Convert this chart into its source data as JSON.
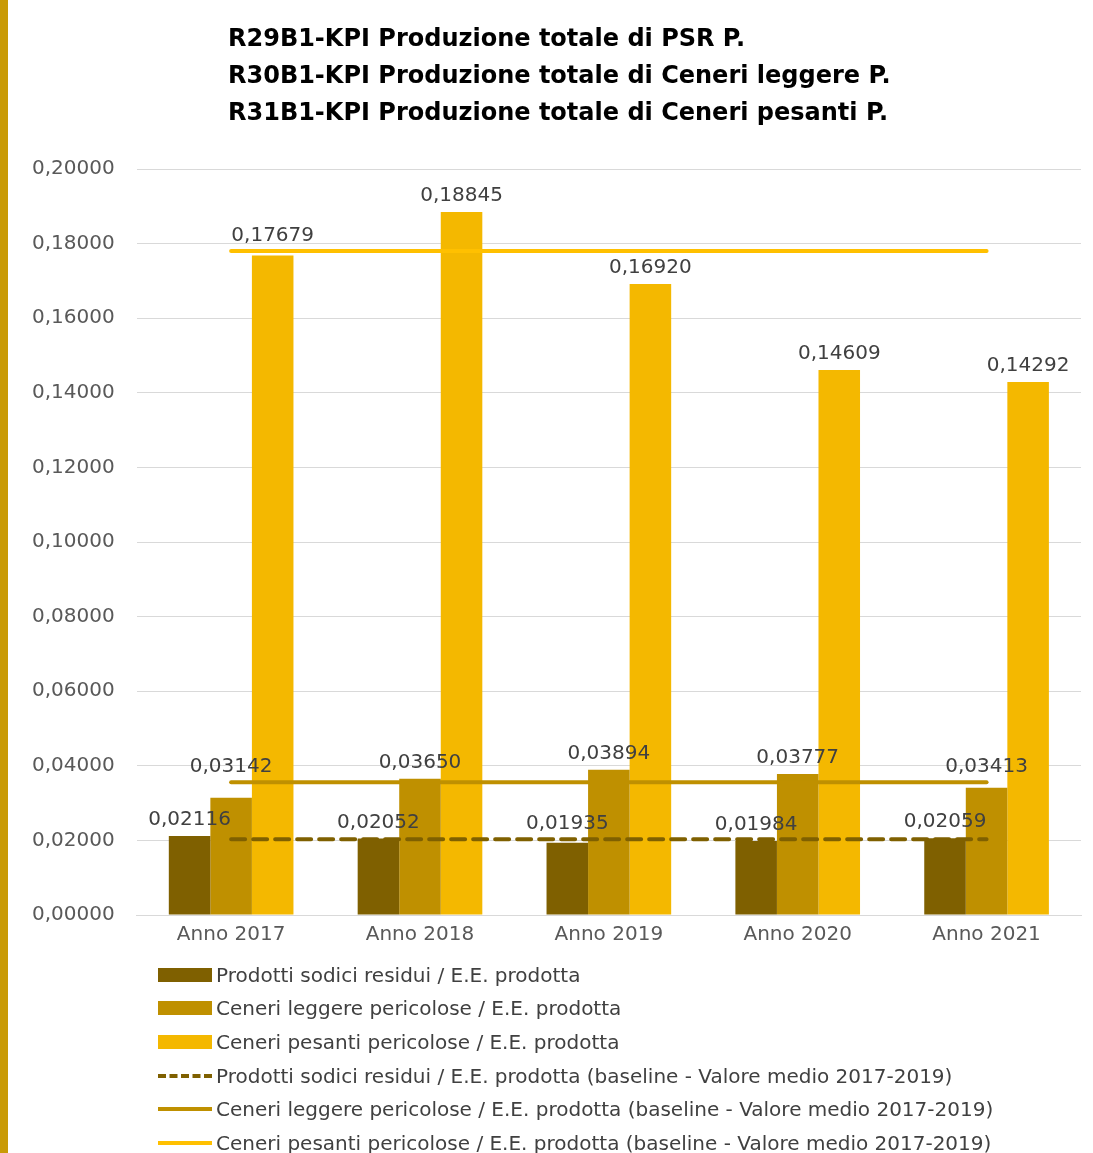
{
  "chart_data": {
    "type": "bar",
    "title": "R29B1-KPI Produzione totale di PSR P.\nR30B1-KPI Produzione totale di Ceneri leggere P.\nR31B1-KPI Produzione totale di Ceneri pesanti P.",
    "categories": [
      "Anno 2017",
      "Anno 2018",
      "Anno 2019",
      "Anno 2020",
      "Anno 2021"
    ],
    "series": [
      {
        "name": "Prodotti sodici residui / E.E. prodotta",
        "color": "#7f6000",
        "values": [
          0.02116,
          0.02052,
          0.01935,
          0.01984,
          0.02059
        ],
        "value_labels": [
          "0,02116",
          "0,02052",
          "0,01935",
          "0,01984",
          "0,02059"
        ]
      },
      {
        "name": "Ceneri leggere pericolose / E.E. prodotta",
        "color": "#bf9000",
        "values": [
          0.03142,
          0.0365,
          0.03894,
          0.03777,
          0.03413
        ],
        "value_labels": [
          "0,03142",
          "0,03650",
          "0,03894",
          "0,03777",
          "0,03413"
        ]
      },
      {
        "name": "Ceneri pesanti pericolose / E.E. prodotta",
        "color": "#f4b800",
        "values": [
          0.17679,
          0.18845,
          0.1692,
          0.14609,
          0.14292
        ],
        "value_labels": [
          "0,17679",
          "0,18845",
          "0,16920",
          "0,14609",
          "0,14292"
        ]
      },
      {
        "name": "Prodotti sodici residui / E.E. prodotta (baseline - Valore medio 2017-2019)",
        "type": "line",
        "color": "#7f6000",
        "line_style": "dashed",
        "values": [
          0.0203,
          0.0203,
          0.0203,
          0.0203,
          0.0203
        ]
      },
      {
        "name": "Ceneri leggere pericolose / E.E. prodotta (baseline - Valore medio 2017-2019)",
        "type": "line",
        "color": "#bf9000",
        "line_style": "solid",
        "values": [
          0.0356,
          0.0356,
          0.0356,
          0.0356,
          0.0356
        ]
      },
      {
        "name": "Ceneri pesanti pericolose / E.E. prodotta (baseline - Valore medio 2017-2019)",
        "type": "line",
        "color": "#ffc000",
        "line_style": "solid",
        "values": [
          0.178,
          0.178,
          0.178,
          0.178,
          0.178
        ]
      }
    ],
    "ylim": [
      0,
      0.2
    ],
    "yticks": [
      {
        "value": 0,
        "label": "0,00000"
      },
      {
        "value": 0.02,
        "label": "0,02000"
      },
      {
        "value": 0.04,
        "label": "0,04000"
      },
      {
        "value": 0.06,
        "label": "0,06000"
      },
      {
        "value": 0.08,
        "label": "0,08000"
      },
      {
        "value": 0.1,
        "label": "0,10000"
      },
      {
        "value": 0.12,
        "label": "0,12000"
      },
      {
        "value": 0.14,
        "label": "0,14000"
      },
      {
        "value": 0.16,
        "label": "0,16000"
      },
      {
        "value": 0.18,
        "label": "0,18000"
      },
      {
        "value": 0.2,
        "label": "0,20000"
      }
    ],
    "grid": "y",
    "legend": "bottom",
    "marker": "none"
  }
}
